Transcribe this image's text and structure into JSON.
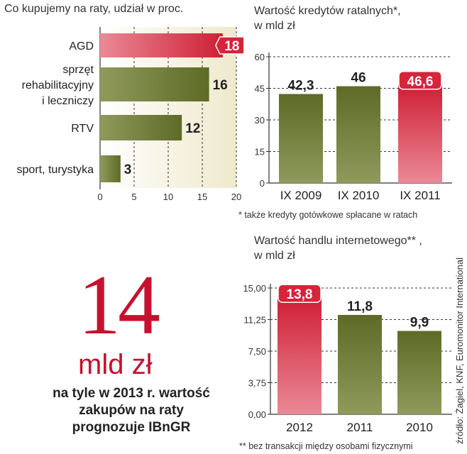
{
  "chart_data": [
    {
      "type": "bar",
      "orientation": "horizontal",
      "title": "Co kupujemy na raty, udział w proc.",
      "categories": [
        "AGD",
        "sprzęt rehabilitacyjny i leczniczy",
        "RTV",
        "sport, turystyka"
      ],
      "category_lines": [
        [
          "AGD"
        ],
        [
          "sprzęt",
          "rehabilitacyjny",
          "i leczniczy"
        ],
        [
          "RTV"
        ],
        [
          "sport, turystyka"
        ]
      ],
      "values": [
        18,
        16,
        12,
        3
      ],
      "value_labels": [
        "18",
        "16",
        "12",
        "3"
      ],
      "highlight_index": 0,
      "xlim": [
        0,
        20
      ],
      "xticks": [
        "0",
        "5",
        "10",
        "15",
        "20"
      ],
      "grid": true
    },
    {
      "type": "bar",
      "title": "Wartość kredytów ratalnych*, w mld zł",
      "title_lines": [
        "Wartość kredytów ratalnych*,",
        "w mld zł"
      ],
      "categories": [
        "IX 2009",
        "IX 2010",
        "IX 2011"
      ],
      "values": [
        42.3,
        46,
        46.6
      ],
      "value_labels": [
        "42,3",
        "46",
        "46,6"
      ],
      "highlight_index": 2,
      "ylim": [
        0,
        60
      ],
      "yticks": [
        "0",
        "15",
        "30",
        "45",
        "60"
      ],
      "grid": true,
      "footnote": "* także kredyty gotówkowe spłacane w ratach"
    },
    {
      "type": "bar",
      "title": "Wartość handlu internetowego** , w mld zł",
      "title_lines": [
        "Wartość handlu internetowego** ,",
        "w mld zł"
      ],
      "categories": [
        "2012",
        "2011",
        "2010"
      ],
      "values": [
        13.8,
        11.8,
        9.9
      ],
      "value_labels": [
        "13,8",
        "11,8",
        "9,9"
      ],
      "highlight_index": 0,
      "ylim": [
        0,
        15
      ],
      "yticks": [
        "0,00",
        "3,75",
        "7,50",
        "11,25",
        "15,00"
      ],
      "grid": true,
      "footnote": "** bez transakcji między osobami fizycznymi"
    }
  ],
  "callout": {
    "number": "14",
    "unit": "mld zł",
    "lines": [
      "na tyle w 2013 r. wartość",
      "zakupów na raty",
      "prognozuje IBnGR"
    ]
  },
  "source": "źródło: Żagiel, KNF, Euromonitor International",
  "colors": {
    "red": "#d6243a",
    "olive": "#6b7a33",
    "olive_dark": "#4b5a1f",
    "bg_band": "#efe9cc"
  }
}
